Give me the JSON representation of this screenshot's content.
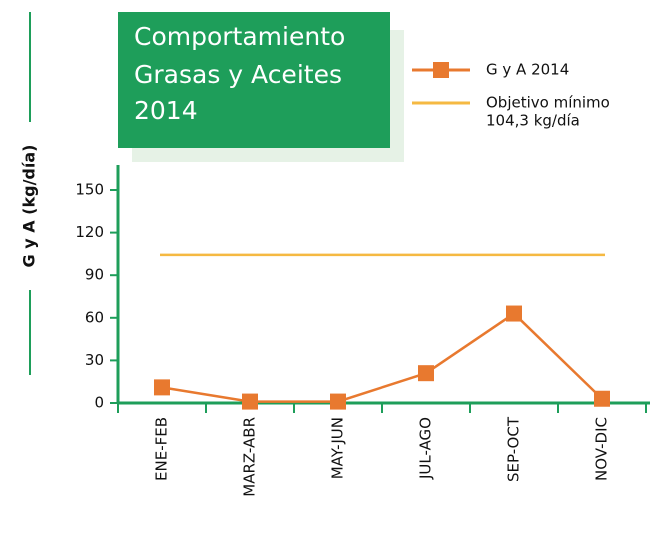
{
  "chart_data": {
    "type": "line",
    "title": [
      "Comportamiento",
      "Grasas y Aceites",
      "2014"
    ],
    "y_label": "G y A (kg/día)",
    "categories": [
      "ENE-FEB",
      "MARZ-ABR",
      "MAY-JUN",
      "JUL-AGO",
      "SEP-OCT",
      "NOV-DIC"
    ],
    "series": [
      {
        "name": "G y A 2014",
        "color": "#e8792f",
        "values": [
          11,
          1,
          1,
          21,
          63,
          3
        ]
      }
    ],
    "target": {
      "name": "Objetivo mínimo",
      "value": 104.3,
      "value_label": "104,3 kg/día",
      "color": "#f5b942"
    },
    "ylim": [
      0,
      150
    ],
    "yticks": [
      0,
      30,
      60,
      90,
      120,
      150
    ],
    "axis_color": "#1e9e5a"
  }
}
